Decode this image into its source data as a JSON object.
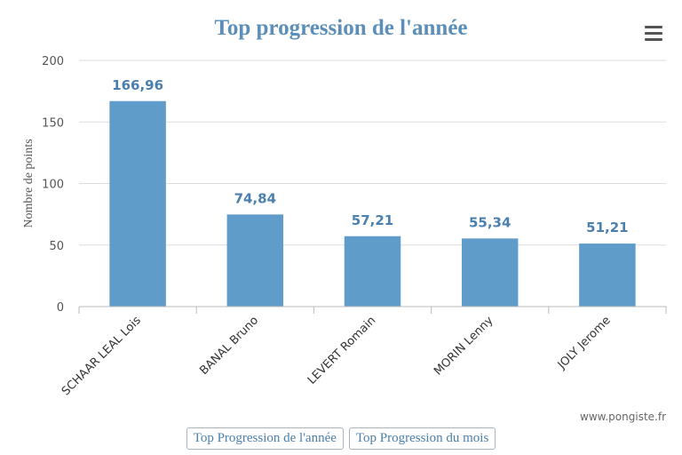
{
  "title": "Top progression de l'année",
  "menu": {
    "icon": "hamburger-menu-icon"
  },
  "credit": "www.pongiste.fr",
  "buttons": [
    {
      "label": "Top Progression de l'année"
    },
    {
      "label": "Top Progression du mois"
    }
  ],
  "colors": {
    "bar": "#5f9cc9",
    "title": "#5b8fb9",
    "grid": "#dddddd"
  },
  "chart_data": {
    "type": "bar",
    "title": "Top progression de l'année",
    "xlabel": "",
    "ylabel": "Nombre de points",
    "categories": [
      "SCHAAR LEAL Lois",
      "BANAL Bruno",
      "LEVERT Romain",
      "MORIN Lenny",
      "JOLY Jerome"
    ],
    "values": [
      166.96,
      74.84,
      57.21,
      55.34,
      51.21
    ],
    "value_labels": [
      "166,96",
      "74,84",
      "57,21",
      "55,34",
      "51,21"
    ],
    "ylim": [
      0,
      200
    ],
    "yticks": [
      0,
      50,
      100,
      150,
      200
    ],
    "grid": true,
    "legend": "none"
  }
}
